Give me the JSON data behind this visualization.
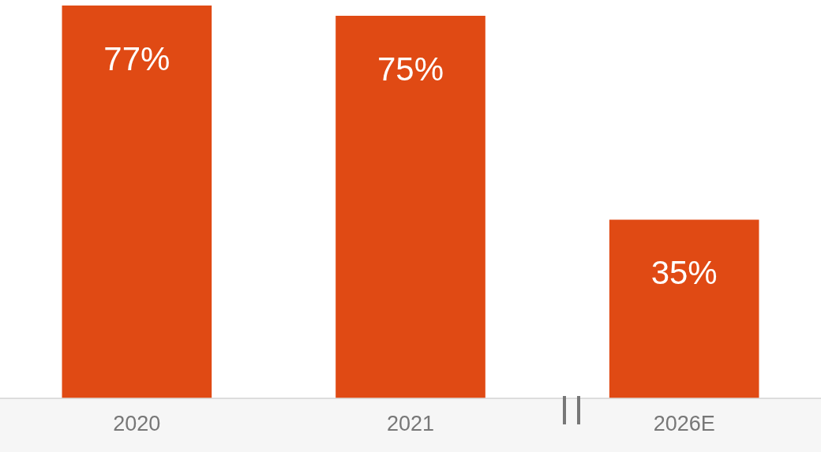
{
  "chart_data": {
    "type": "bar",
    "categories": [
      "2020",
      "2021",
      "2026E"
    ],
    "values": [
      77,
      75,
      35
    ],
    "value_labels": [
      "77%",
      "75%",
      "35%"
    ],
    "color": "#e04a14",
    "grid": false,
    "legend": false,
    "tick_labels": "x"
  }
}
